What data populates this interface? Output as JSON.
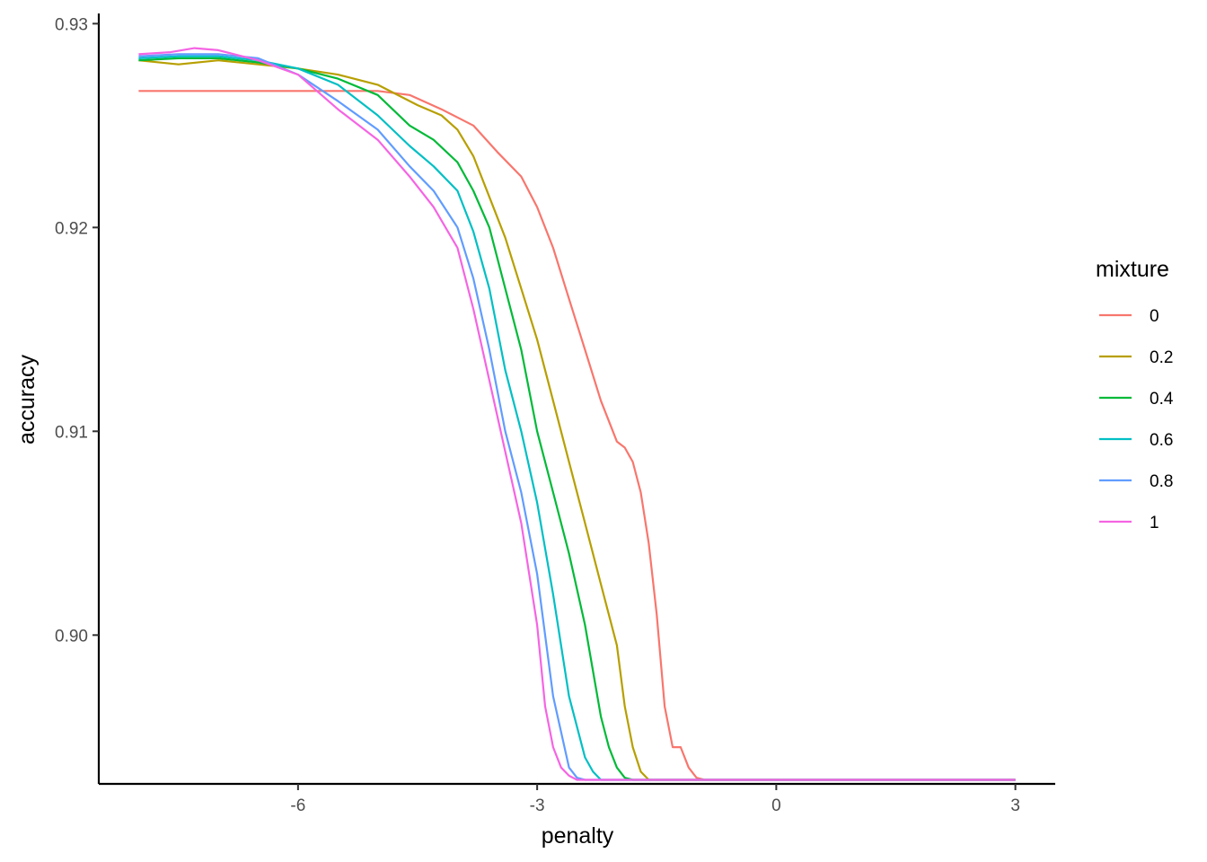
{
  "chart_data": {
    "type": "line",
    "title": "",
    "xlabel": "penalty",
    "ylabel": "accuracy",
    "xlim": [
      -8.5,
      3.5
    ],
    "ylim": [
      0.8927,
      0.9305
    ],
    "xticks": [
      -6,
      -3,
      0,
      3
    ],
    "xtick_labels": [
      "-6",
      "-3",
      "0",
      "3"
    ],
    "yticks": [
      0.9,
      0.91,
      0.92,
      0.93
    ],
    "ytick_labels": [
      "0.90",
      "0.91",
      "0.92",
      "0.93"
    ],
    "grid": false,
    "legend": {
      "title": "mixture",
      "position": "right"
    },
    "series": [
      {
        "name": "0",
        "color": "#F8766D",
        "x": [
          -8,
          -5,
          -4.6,
          -4.2,
          -3.8,
          -3.5,
          -3.2,
          -3.0,
          -2.8,
          -2.6,
          -2.4,
          -2.2,
          -2.0,
          -1.9,
          -1.8,
          -1.7,
          -1.6,
          -1.5,
          -1.4,
          -1.3,
          -1.2,
          -1.1,
          -1.0,
          -0.9,
          3
        ],
        "y": [
          0.9267,
          0.9267,
          0.9265,
          0.9258,
          0.925,
          0.9237,
          0.9225,
          0.921,
          0.919,
          0.9165,
          0.914,
          0.9115,
          0.9095,
          0.9092,
          0.9085,
          0.907,
          0.9045,
          0.901,
          0.8965,
          0.8945,
          0.8945,
          0.8935,
          0.893,
          0.8929,
          0.8929
        ]
      },
      {
        "name": "0.2",
        "color": "#B79F00",
        "x": [
          -8,
          -7.5,
          -7,
          -6.5,
          -6,
          -5.5,
          -5,
          -4.5,
          -4.2,
          -4.0,
          -3.8,
          -3.6,
          -3.4,
          -3.2,
          -3.0,
          -2.8,
          -2.6,
          -2.4,
          -2.2,
          -2.0,
          -1.9,
          -1.8,
          -1.7,
          -1.6,
          -1.5,
          3
        ],
        "y": [
          0.9282,
          0.928,
          0.9282,
          0.928,
          0.9278,
          0.9275,
          0.927,
          0.926,
          0.9255,
          0.9248,
          0.9235,
          0.9215,
          0.9195,
          0.917,
          0.9145,
          0.9115,
          0.9085,
          0.9055,
          0.9025,
          0.8995,
          0.8965,
          0.8945,
          0.8933,
          0.8929,
          0.8929,
          0.8929
        ]
      },
      {
        "name": "0.4",
        "color": "#00BA38",
        "x": [
          -8,
          -7.5,
          -7,
          -6.5,
          -6,
          -5.5,
          -5,
          -4.6,
          -4.3,
          -4.0,
          -3.8,
          -3.6,
          -3.4,
          -3.2,
          -3.0,
          -2.8,
          -2.6,
          -2.4,
          -2.2,
          -2.1,
          -2.0,
          -1.9,
          -1.8,
          3
        ],
        "y": [
          0.9282,
          0.9283,
          0.9283,
          0.9281,
          0.9278,
          0.9273,
          0.9265,
          0.925,
          0.9243,
          0.9232,
          0.9218,
          0.92,
          0.917,
          0.914,
          0.91,
          0.907,
          0.904,
          0.9005,
          0.896,
          0.8945,
          0.8935,
          0.893,
          0.8929,
          0.8929
        ]
      },
      {
        "name": "0.6",
        "color": "#00BFC4",
        "x": [
          -8,
          -7.5,
          -7,
          -6.5,
          -6,
          -5.5,
          -5,
          -4.6,
          -4.3,
          -4.0,
          -3.8,
          -3.6,
          -3.4,
          -3.2,
          -3.0,
          -2.8,
          -2.6,
          -2.4,
          -2.3,
          -2.2,
          -2.1,
          3
        ],
        "y": [
          0.9283,
          0.9284,
          0.9284,
          0.9282,
          0.9278,
          0.927,
          0.9255,
          0.924,
          0.923,
          0.9218,
          0.9198,
          0.917,
          0.913,
          0.91,
          0.9065,
          0.902,
          0.897,
          0.894,
          0.8933,
          0.8929,
          0.8929,
          0.8929
        ]
      },
      {
        "name": "0.8",
        "color": "#619CFF",
        "x": [
          -8,
          -7.5,
          -7,
          -6.5,
          -6,
          -5.5,
          -5,
          -4.6,
          -4.3,
          -4.0,
          -3.8,
          -3.6,
          -3.4,
          -3.2,
          -3.0,
          -2.8,
          -2.6,
          -2.5,
          -2.4,
          3
        ],
        "y": [
          0.9284,
          0.9285,
          0.9285,
          0.9283,
          0.9275,
          0.9262,
          0.9248,
          0.923,
          0.9218,
          0.92,
          0.9175,
          0.914,
          0.91,
          0.907,
          0.903,
          0.897,
          0.8935,
          0.893,
          0.8929,
          0.8929
        ]
      },
      {
        "name": "1",
        "color": "#F564E3",
        "x": [
          -8,
          -7.6,
          -7.3,
          -7,
          -6.5,
          -6,
          -5.5,
          -5,
          -4.6,
          -4.3,
          -4.0,
          -3.8,
          -3.6,
          -3.4,
          -3.2,
          -3.0,
          -2.9,
          -2.8,
          -2.7,
          -2.6,
          -2.5,
          -2.4,
          3
        ],
        "y": [
          0.9285,
          0.9286,
          0.9288,
          0.9287,
          0.9282,
          0.9275,
          0.9258,
          0.9243,
          0.9225,
          0.921,
          0.919,
          0.916,
          0.9125,
          0.909,
          0.9055,
          0.9005,
          0.8965,
          0.8945,
          0.8935,
          0.8931,
          0.8929,
          0.8929,
          0.8929
        ]
      }
    ]
  }
}
